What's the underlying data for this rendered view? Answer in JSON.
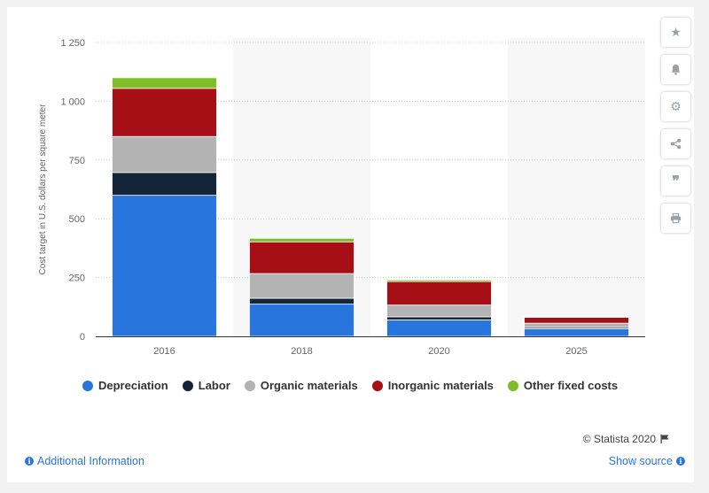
{
  "chart_data": {
    "type": "bar",
    "stacked": true,
    "categories": [
      "2016",
      "2018",
      "2020",
      "2025"
    ],
    "series": [
      {
        "name": "Depreciation",
        "color": "#2876dd",
        "values": [
          600,
          137,
          70,
          32
        ]
      },
      {
        "name": "Labor",
        "color": "#14253a",
        "values": [
          97,
          25,
          13,
          6
        ]
      },
      {
        "name": "Organic materials",
        "color": "#b3b3b3",
        "values": [
          153,
          105,
          50,
          18
        ]
      },
      {
        "name": "Inorganic materials",
        "color": "#a50f15",
        "values": [
          205,
          135,
          100,
          25
        ]
      },
      {
        "name": "Other fixed costs",
        "color": "#7fbe29",
        "values": [
          45,
          15,
          7,
          2
        ]
      }
    ],
    "ylabel": "Cost target in U.S. dollars per square meter",
    "xlabel": "",
    "yticks": [
      0,
      250,
      500,
      750,
      1000,
      1250
    ],
    "ytick_labels": [
      "0",
      "250",
      "500",
      "750",
      "1 000",
      "1 250"
    ],
    "ylim": [
      0,
      1250
    ],
    "grid": true,
    "legend_position": "bottom-left"
  },
  "toolbar": {
    "icons": [
      "star-icon",
      "bell-icon",
      "gear-icon",
      "share-icon",
      "quote-icon",
      "print-icon"
    ]
  },
  "footer": {
    "credits": "© Statista 2020",
    "additional_info": "Additional Information",
    "show_source": "Show source"
  }
}
